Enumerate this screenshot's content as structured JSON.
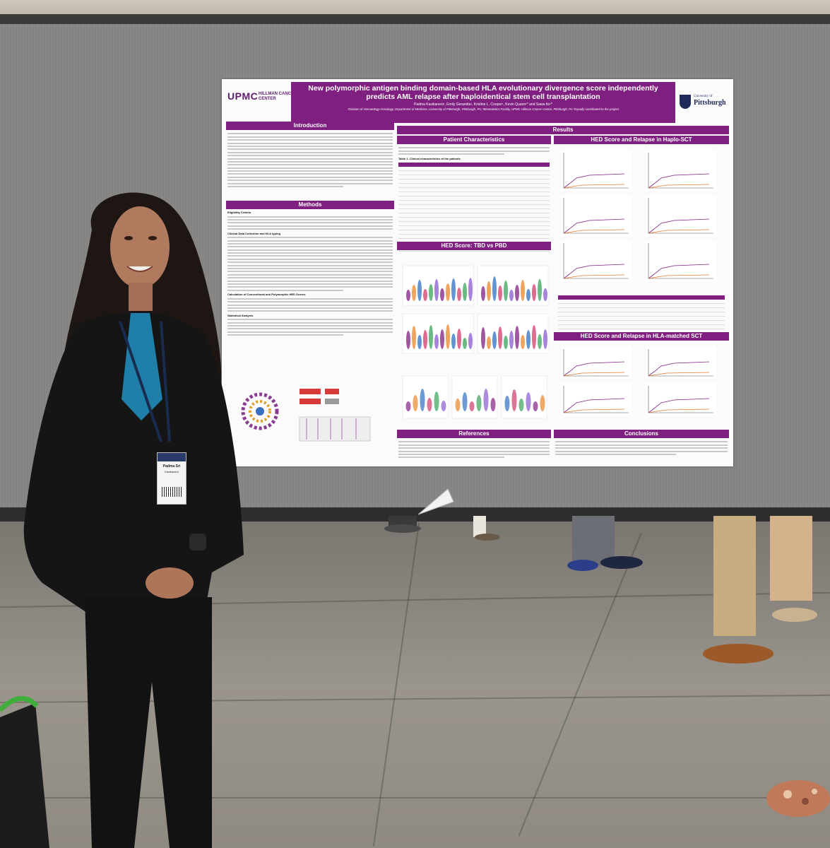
{
  "poster": {
    "left_logo_text": "UPMC",
    "left_logo_sub": "HILLMAN CANCER CENTER",
    "title": "New polymorphic antigen binding domain-based HLA evolutionary divergence score independently predicts AML relapse after haploidentical stem cell transplantation",
    "authors": "Padma Kasikaneni¹, Emily Geramita¹, Kristine L. Cooper¹, Kevin Quann¹* and Sawa Ito¹*",
    "affiliations": "¹Division of Hematology-Oncology, Department of Medicine, University of Pittsburgh, Pittsburgh, PA; ²Biostatistics Facility, UPMC Hillman Cancer Center, Pittsburgh, PA  *Equally contributed to the project",
    "right_logo_small": "University of",
    "right_logo_big": "Pittsburgh",
    "sections": {
      "introduction": "Introduction",
      "methods": "Methods",
      "results": "Results",
      "patient_characteristics": "Patient Characteristics",
      "hed_tbd_vs_pbd": "HED Score: TBD vs PBD",
      "hed_haplo": "HED Score and Relapse in Haplo-SCT",
      "hed_matched": "HED Score and Relapse in HLA-matched SCT",
      "references": "References",
      "conclusions": "Conclusions"
    },
    "table_title": "Table 1. Clinical characteristics of the patients",
    "methods_subheads": [
      "Eligibility Criteria",
      "Clinical Data Collection and HLA typing",
      "Calculation of Conventional and Polymorphic HED Scores",
      "Statistical Analysis"
    ]
  },
  "badge": {
    "name": "Padma Sri",
    "surname": "Kasikaneni"
  }
}
